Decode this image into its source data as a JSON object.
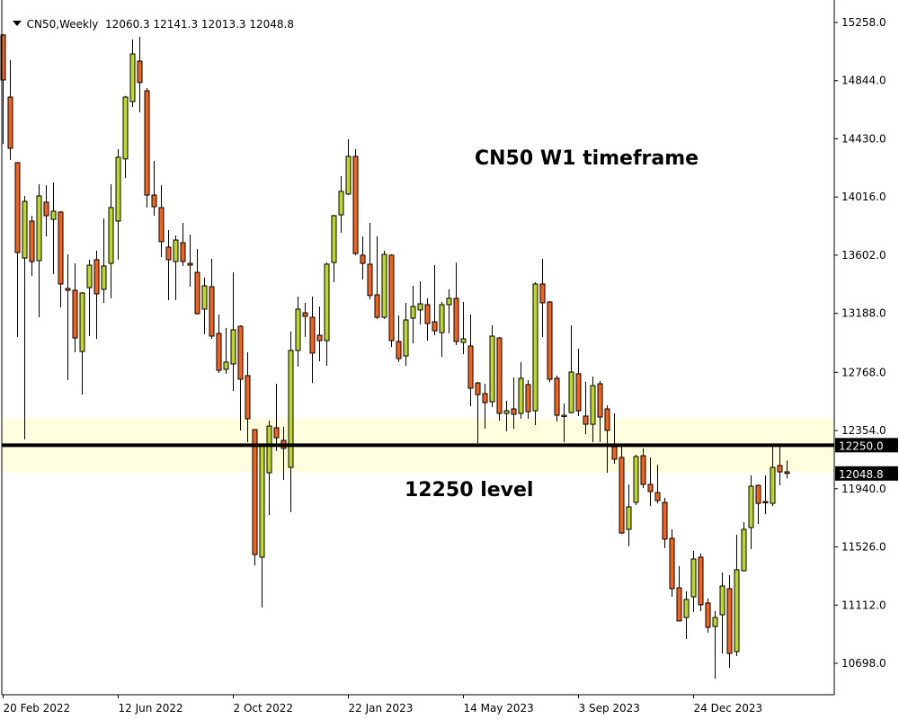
{
  "header": {
    "symbol_timeframe": "CN50,Weekly",
    "ohlc_text": "12060.3 12141.3 12013.3 12048.8"
  },
  "annotations": {
    "title": "CN50 W1 timeframe",
    "level_label": "12250 level"
  },
  "colors": {
    "bull": "#BFD62A",
    "bear": "#F2641E",
    "outline": "#000000",
    "zone": "#FFFFE0",
    "level_line": "#000000"
  },
  "chart_data": {
    "type": "candlestick",
    "timeframe": "Weekly",
    "symbol": "CN50",
    "ylim": [
      10560,
      15420
    ],
    "grid": false,
    "yticks": [
      15258.0,
      14844.0,
      14430.0,
      14016.0,
      13602.0,
      13188.0,
      12768.0,
      12354.0,
      11940.0,
      11526.0,
      11112.0,
      10698.0
    ],
    "ytick_labels": [
      "15258.0",
      "14844.0",
      "14430.0",
      "14016.0",
      "13602.0",
      "13188.0",
      "12768.0",
      "12354.0",
      "11940.0",
      "11526.0",
      "11112.0",
      "10698.0"
    ],
    "xticks": [
      {
        "label": "20 Feb 2022",
        "candle": 0
      },
      {
        "label": "12 Jun 2022",
        "candle": 16
      },
      {
        "label": "2 Oct 2022",
        "candle": 32
      },
      {
        "label": "22 Jan 2023",
        "candle": 48
      },
      {
        "label": "14 May 2023",
        "candle": 64
      },
      {
        "label": "3 Sep 2023",
        "candle": 80
      },
      {
        "label": "24 Dec 2023",
        "candle": 96
      }
    ],
    "level": {
      "value": 12250.0,
      "label": "12250.0"
    },
    "current_price": {
      "value": 12048.8,
      "label": "12048.8"
    },
    "zone": {
      "low": 12060,
      "high": 12440
    },
    "ohlc": [
      [
        15169,
        15175,
        14395,
        14849
      ],
      [
        14727,
        14990,
        14280,
        14363
      ],
      [
        14260,
        14265,
        13020,
        13621
      ],
      [
        13582,
        14024,
        12291,
        13985
      ],
      [
        13845,
        13883,
        13455,
        13557
      ],
      [
        13563,
        14107,
        13160,
        14024
      ],
      [
        13979,
        14100,
        13736,
        13883
      ],
      [
        13857,
        14120,
        13467,
        13915
      ],
      [
        13909,
        13915,
        13231,
        13397
      ],
      [
        13365,
        13608,
        12713,
        13352
      ],
      [
        13352,
        13544,
        12911,
        13013
      ],
      [
        12917,
        13339,
        12610,
        13333
      ],
      [
        13371,
        13570,
        13026,
        13531
      ],
      [
        13570,
        13634,
        13007,
        13327
      ],
      [
        13359,
        13864,
        13263,
        13525
      ],
      [
        13544,
        14107,
        13295,
        13941
      ],
      [
        13845,
        14356,
        13570,
        14299
      ],
      [
        14287,
        14735,
        14152,
        14727
      ],
      [
        14695,
        15137,
        14657,
        15034
      ],
      [
        14983,
        15156,
        14619,
        14830
      ],
      [
        14772,
        14791,
        13941,
        14030
      ],
      [
        14030,
        14273,
        13883,
        13947
      ],
      [
        13941,
        14100,
        13589,
        13698
      ],
      [
        13659,
        13781,
        13282,
        13570
      ],
      [
        13557,
        13742,
        13282,
        13710
      ],
      [
        13691,
        13832,
        13525,
        13557
      ],
      [
        13544,
        13749,
        13378,
        13531
      ],
      [
        13480,
        13646,
        13180,
        13186
      ],
      [
        13218,
        13442,
        13039,
        13384
      ],
      [
        13378,
        13576,
        13007,
        13026
      ],
      [
        13045,
        13180,
        12764,
        12783
      ],
      [
        12790,
        13084,
        12758,
        12841
      ],
      [
        12828,
        13480,
        12636,
        13071
      ],
      [
        13096,
        13103,
        12355,
        12719
      ],
      [
        12745,
        12911,
        12271,
        12438
      ],
      [
        12361,
        12365,
        11395,
        11472
      ],
      [
        11453,
        12252,
        11095,
        12252
      ],
      [
        12054,
        12425,
        11753,
        12386
      ],
      [
        12374,
        12687,
        12207,
        12303
      ],
      [
        12284,
        12380,
        12003,
        12227
      ],
      [
        12092,
        13058,
        11773,
        12924
      ],
      [
        12924,
        13307,
        12809,
        13218
      ],
      [
        13192,
        13263,
        13020,
        13167
      ],
      [
        13160,
        13307,
        12693,
        12905
      ],
      [
        13032,
        13237,
        12847,
        12994
      ],
      [
        12994,
        13550,
        12815,
        13538
      ],
      [
        13550,
        13889,
        13410,
        13883
      ],
      [
        13889,
        14164,
        13762,
        14056
      ],
      [
        14037,
        14427,
        14030,
        14305
      ],
      [
        14305,
        14356,
        13602,
        13614
      ],
      [
        13602,
        13736,
        13429,
        13544
      ],
      [
        13538,
        13832,
        13288,
        13315
      ],
      [
        13320,
        13736,
        13148,
        13160
      ],
      [
        13160,
        13634,
        13148,
        13608
      ],
      [
        13602,
        13608,
        12949,
        12994
      ],
      [
        12988,
        13173,
        12841,
        12866
      ],
      [
        12885,
        13263,
        12815,
        13141
      ],
      [
        13154,
        13384,
        12975,
        13237
      ],
      [
        13212,
        13416,
        13109,
        13256
      ],
      [
        13250,
        13295,
        12994,
        13116
      ],
      [
        13128,
        13531,
        13032,
        13064
      ],
      [
        13051,
        13269,
        12879,
        13250
      ],
      [
        13250,
        13359,
        13045,
        13295
      ],
      [
        13295,
        13550,
        12962,
        12988
      ],
      [
        12981,
        13269,
        12898,
        13007
      ],
      [
        12956,
        13180,
        12527,
        12655
      ],
      [
        12693,
        12700,
        12265,
        12610
      ],
      [
        12617,
        12687,
        12367,
        12553
      ],
      [
        12559,
        13103,
        12521,
        13026
      ],
      [
        13013,
        13020,
        12425,
        12476
      ],
      [
        12476,
        12566,
        12348,
        12495
      ],
      [
        12508,
        12732,
        12367,
        12470
      ],
      [
        12476,
        12841,
        12438,
        12726
      ],
      [
        12681,
        12713,
        12438,
        12489
      ],
      [
        12495,
        13410,
        12393,
        13397
      ],
      [
        13397,
        13576,
        13020,
        13263
      ],
      [
        13269,
        13275,
        12700,
        12719
      ],
      [
        12726,
        12745,
        12418,
        12463
      ],
      [
        12463,
        12546,
        12271,
        12460
      ],
      [
        12482,
        13103,
        12476,
        12770
      ],
      [
        12758,
        12936,
        12457,
        12495
      ],
      [
        12457,
        12700,
        12329,
        12399
      ],
      [
        12399,
        12738,
        12271,
        12674
      ],
      [
        12687,
        12706,
        12271,
        12450
      ],
      [
        12508,
        12534,
        12054,
        12355
      ],
      [
        12239,
        12476,
        12118,
        12150
      ],
      [
        12163,
        12239,
        11619,
        11625
      ],
      [
        11651,
        11971,
        11530,
        11811
      ],
      [
        11843,
        12182,
        11824,
        12169
      ],
      [
        12175,
        12227,
        11945,
        11971
      ],
      [
        11971,
        12163,
        11817,
        11920
      ],
      [
        11913,
        12111,
        11836,
        11856
      ],
      [
        11843,
        11875,
        11517,
        11581
      ],
      [
        11587,
        11651,
        11171,
        11229
      ],
      [
        11235,
        11389,
        10999,
        10999
      ],
      [
        11024,
        11210,
        10871,
        11152
      ],
      [
        11171,
        11498,
        11063,
        11440
      ],
      [
        11453,
        11478,
        11069,
        11114
      ],
      [
        11127,
        11159,
        10916,
        10954
      ],
      [
        10960,
        11069,
        10589,
        11024
      ],
      [
        11043,
        11344,
        10768,
        11248
      ],
      [
        11229,
        11325,
        10666,
        10768
      ],
      [
        10781,
        11613,
        10749,
        11363
      ],
      [
        11357,
        11702,
        11350,
        11651
      ],
      [
        11664,
        12035,
        11510,
        11958
      ],
      [
        11964,
        11970,
        11689,
        11836
      ],
      [
        11849,
        12035,
        11760,
        11845
      ],
      [
        11836,
        12239,
        11817,
        12092
      ],
      [
        12105,
        12239,
        11964,
        12060
      ],
      [
        12060.3,
        12141.3,
        12013.3,
        12048.8
      ]
    ]
  }
}
